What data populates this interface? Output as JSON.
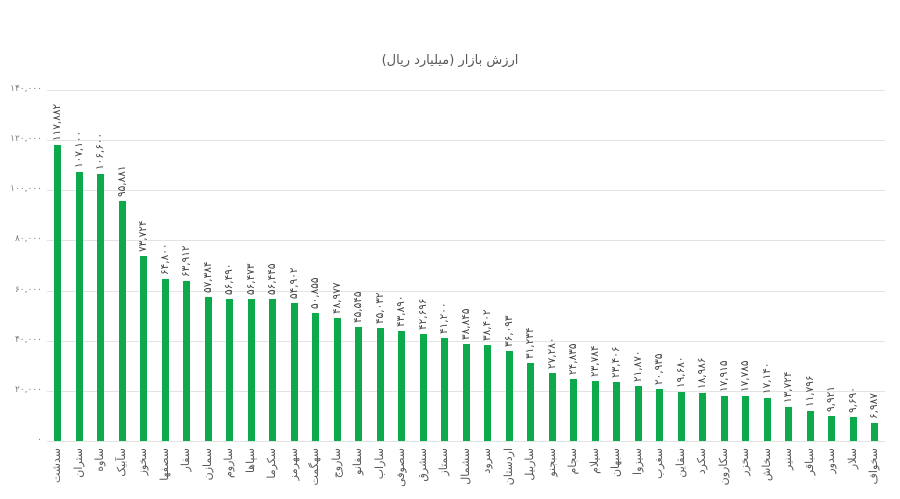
{
  "chart_data": {
    "type": "bar",
    "title": "ارزش بازار (میلیارد ریال)",
    "xlabel": "",
    "ylabel": "",
    "ylim": [
      0,
      140000
    ],
    "grid": true,
    "legend": null,
    "yticks": [
      "۰",
      "۲۰,۰۰۰",
      "۴۰,۰۰۰",
      "۶۰,۰۰۰",
      "۸۰,۰۰۰",
      "۱۰۰,۰۰۰",
      "۱۲۰,۰۰۰",
      "۱۴۰,۰۰۰"
    ],
    "ytick_values": [
      0,
      20000,
      40000,
      60000,
      80000,
      100000,
      120000,
      140000
    ],
    "bar_color": "#0daa4c",
    "categories": [
      "سدشت",
      "ستران",
      "ساوه",
      "سآبیک",
      "سخوز",
      "سصفها",
      "سفار",
      "سمازن",
      "ساروم",
      "سپاها",
      "سکرما",
      "سهرمز",
      "سهگمت",
      "ساروج",
      "سفانو",
      "ساراب",
      "سصوفی",
      "سشرق",
      "سمتاز",
      "سشمال",
      "سرود",
      "اردستان",
      "ساربیل",
      "سبجنو",
      "سجام",
      "سیلام",
      "سبهان",
      "سیزوا",
      "سغرب",
      "سقاین",
      "سکرد",
      "سکارون",
      "سخزر",
      "سخاش",
      "سنیر",
      "سباقر",
      "سدور",
      "سلار",
      "سخواف"
    ],
    "values": [
      117882,
      107100,
      106600,
      95881,
      73724,
      64800,
      63912,
      57384,
      56490,
      56473,
      56445,
      54902,
      50855,
      48977,
      45545,
      45032,
      43890,
      42696,
      41200,
      38845,
      38402,
      36093,
      31234,
      27280,
      24835,
      23784,
      23406,
      21870,
      20935,
      19680,
      18986,
      17915,
      17785,
      17140,
      13724,
      11796,
      9921,
      9690,
      6987
    ],
    "value_labels": [
      "۱۱۷,۸۸۲",
      "۱۰۷,۱۰۰",
      "۱۰۶,۶۰۰",
      "۹۵,۸۸۱",
      "۷۳,۷۲۴",
      "۶۴,۸۰۰",
      "۶۳,۹۱۲",
      "۵۷,۳۸۴",
      "۵۶,۴۹۰",
      "۵۶,۴۷۳",
      "۵۶,۴۴۵",
      "۵۴,۹۰۲",
      "۵۰,۸۵۵",
      "۴۸,۹۷۷",
      "۴۵,۵۴۵",
      "۴۵,۰۳۲",
      "۴۳,۸۹۰",
      "۴۲,۶۹۶",
      "۴۱,۲۰۰",
      "۳۸,۸۴۵",
      "۳۸,۴۰۲",
      "۳۶,۰۹۳",
      "۳۱,۲۳۴",
      "۲۷,۲۸۰",
      "۲۴,۸۳۵",
      "۲۳,۷۸۴",
      "۲۳,۴۰۶",
      "۲۱,۸۷۰",
      "۲۰,۹۳۵",
      "۱۹,۶۸۰",
      "۱۸,۹۸۶",
      "۱۷,۹۱۵",
      "۱۷,۷۸۵",
      "۱۷,۱۴۰",
      "۱۳,۷۲۴",
      "۱۱,۷۹۶",
      "۹,۹۲۱",
      "۹,۶۹۰",
      "۶,۹۸۷"
    ]
  }
}
